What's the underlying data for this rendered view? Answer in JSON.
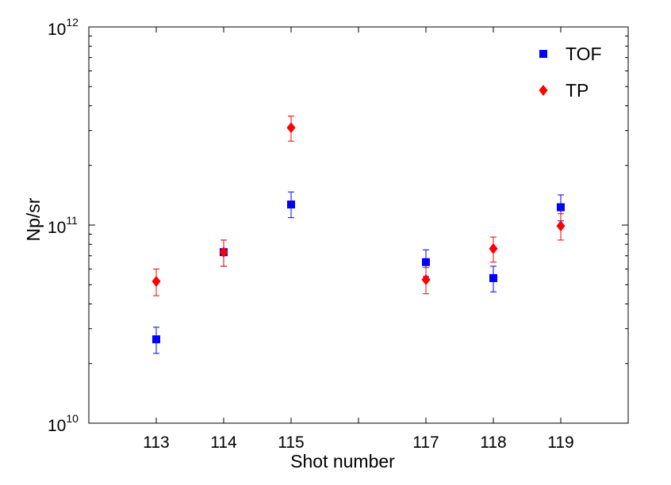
{
  "chart_data": {
    "type": "scatter",
    "xlabel": "Shot number",
    "ylabel": "Np/sr",
    "x_ticks": [
      113,
      114,
      115,
      117,
      118,
      119
    ],
    "x_tick_labels": [
      "113",
      "114",
      "115",
      "117",
      "118",
      "119"
    ],
    "xlim": [
      112,
      120
    ],
    "ylim": [
      10000000000.0,
      1000000000000.0
    ],
    "yscale": "log",
    "y_ticks": [
      {
        "value": 10000000000.0,
        "base": "10",
        "exp": "10"
      },
      {
        "value": 100000000000.0,
        "base": "10",
        "exp": "11"
      },
      {
        "value": 1000000000000.0,
        "base": "10",
        "exp": "12"
      }
    ],
    "grid": false,
    "legend_position": "top-right",
    "series": [
      {
        "name": "TOF",
        "marker": "square",
        "color": "#0000ff",
        "points": [
          {
            "x": 113,
            "y": 26500000000.0,
            "err_low": 22500000000.0,
            "err_high": 30500000000.0
          },
          {
            "x": 114,
            "y": 73000000000.0,
            "err_low": 62000000000.0,
            "err_high": 84000000000.0
          },
          {
            "x": 115,
            "y": 127000000000.0,
            "err_low": 109000000000.0,
            "err_high": 147000000000.0
          },
          {
            "x": 117,
            "y": 65000000000.0,
            "err_low": 55000000000.0,
            "err_high": 75000000000.0
          },
          {
            "x": 118,
            "y": 54000000000.0,
            "err_low": 46000000000.0,
            "err_high": 62000000000.0
          },
          {
            "x": 119,
            "y": 123000000000.0,
            "err_low": 105000000000.0,
            "err_high": 142000000000.0
          }
        ]
      },
      {
        "name": "TP",
        "marker": "diamond",
        "color": "#ff0000",
        "points": [
          {
            "x": 113,
            "y": 52000000000.0,
            "err_low": 44000000000.0,
            "err_high": 60000000000.0
          },
          {
            "x": 114,
            "y": 73000000000.0,
            "err_low": 62000000000.0,
            "err_high": 84000000000.0
          },
          {
            "x": 115,
            "y": 310000000000.0,
            "err_low": 265000000000.0,
            "err_high": 355000000000.0
          },
          {
            "x": 117,
            "y": 53000000000.0,
            "err_low": 45000000000.0,
            "err_high": 61000000000.0
          },
          {
            "x": 118,
            "y": 76000000000.0,
            "err_low": 65000000000.0,
            "err_high": 87000000000.0
          },
          {
            "x": 119,
            "y": 99000000000.0,
            "err_low": 84000000000.0,
            "err_high": 114000000000.0
          }
        ]
      }
    ]
  }
}
